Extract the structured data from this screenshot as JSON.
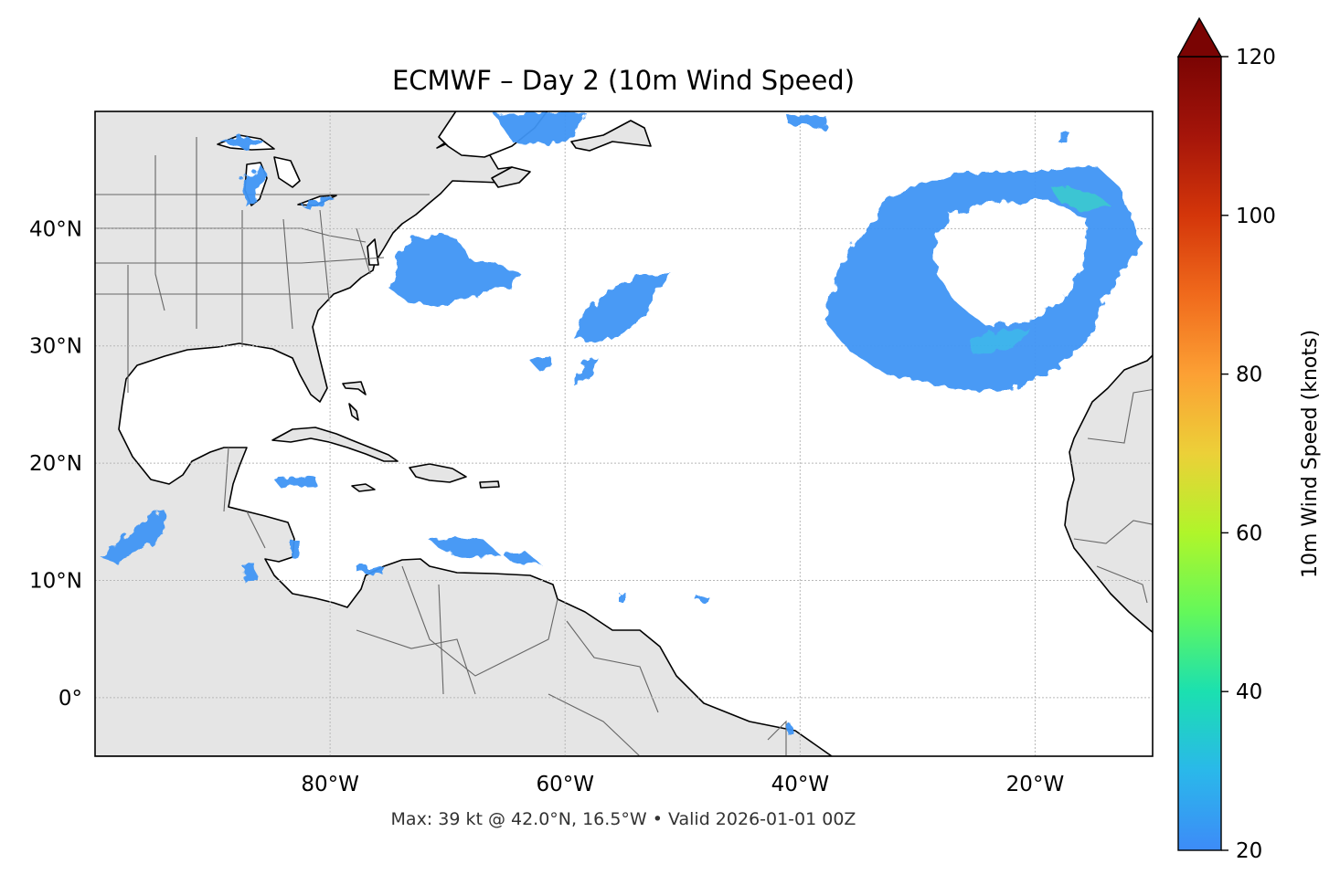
{
  "title": "ECMWF – Day 2 (10m Wind Speed)",
  "footer": "Max: 39 kt @ 42.0°N, 16.5°W • Valid 2026-01-01 00Z",
  "map": {
    "lon_range": [
      -100,
      -10
    ],
    "lat_range": [
      -5,
      50
    ],
    "lon_ticks": [
      {
        "value": -80,
        "label": "80°W"
      },
      {
        "value": -60,
        "label": "60°W"
      },
      {
        "value": -40,
        "label": "40°W"
      },
      {
        "value": -20,
        "label": "20°W"
      }
    ],
    "lat_ticks": [
      {
        "value": 40,
        "label": "40°N"
      },
      {
        "value": 30,
        "label": "30°N"
      },
      {
        "value": 20,
        "label": "20°N"
      },
      {
        "value": 10,
        "label": "10°N"
      },
      {
        "value": 0,
        "label": "0°"
      }
    ],
    "land_color": "#e5e5e5",
    "ocean_color": "#ffffff",
    "gridlines": true
  },
  "colorbar": {
    "label": "10m Wind Speed (knots)",
    "range": [
      20,
      120
    ],
    "extend": "max",
    "ticks": [
      {
        "value": 20,
        "label": "20"
      },
      {
        "value": 40,
        "label": "40"
      },
      {
        "value": 60,
        "label": "60"
      },
      {
        "value": 80,
        "label": "80"
      },
      {
        "value": 100,
        "label": "100"
      },
      {
        "value": 120,
        "label": "120"
      }
    ],
    "stops": [
      "#3d8bf8",
      "#2ab8ea",
      "#1be0b0",
      "#64f85a",
      "#b0f52a",
      "#ecd038",
      "#fca034",
      "#f06a1c",
      "#d4360a",
      "#a5150a",
      "#7a0403"
    ]
  },
  "wind_colors": {
    "base": "#3f95f5",
    "mid": "#35b6ea",
    "high": "#2dd6c2"
  },
  "chart_data": {
    "type": "heatmap",
    "variable": "10m Wind Speed (knots)",
    "max_value": 39,
    "max_location": {
      "lat": 42.0,
      "lon": -16.5
    },
    "valid": "2026-01-01 00Z",
    "color_range": [
      20,
      120
    ],
    "regions": [
      {
        "lat": 36.5,
        "lon": -60.5,
        "peak": 28
      },
      {
        "lat": 35.0,
        "lon": -54.0,
        "peak": 27
      },
      {
        "lat": 36.5,
        "lon": -28.0,
        "peak": 39
      },
      {
        "lat": 14.5,
        "lon": -96.0,
        "peak": 28
      },
      {
        "lat": 12.8,
        "lon": -68.0,
        "peak": 24
      }
    ]
  }
}
